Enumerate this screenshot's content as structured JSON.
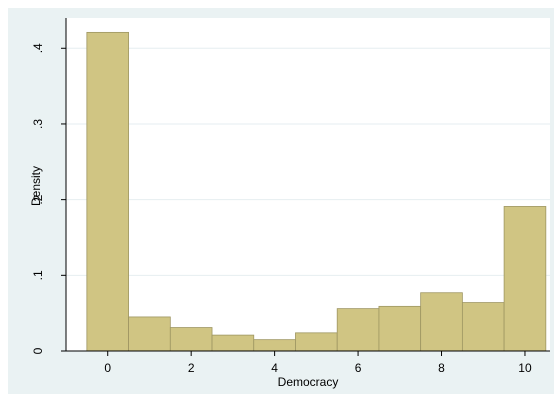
{
  "colors": {
    "outer_background": "#ffffff",
    "graph_region": "#eaf2f3",
    "plot_region": "#ffffff",
    "bar_fill": "#d0c583",
    "bar_stroke": "#9e9662",
    "gridline": "#e6eef0",
    "axis": "#000000"
  },
  "chart_data": {
    "type": "bar",
    "title": "",
    "xlabel": "Democracy",
    "ylabel": "Density",
    "x_ticks": [
      "0",
      "2",
      "4",
      "6",
      "8",
      "10"
    ],
    "y_ticks": [
      "0",
      ".1",
      ".2",
      ".3",
      ".4"
    ],
    "categories": [
      "0",
      "1",
      "2",
      "3",
      "4",
      "5",
      "6",
      "7",
      "8",
      "9",
      "10"
    ],
    "values": [
      0.421,
      0.045,
      0.031,
      0.021,
      0.015,
      0.024,
      0.056,
      0.059,
      0.077,
      0.064,
      0.191
    ],
    "bin_width": 1,
    "xlim": [
      -1,
      10.6
    ],
    "ylim": [
      0,
      0.44
    ],
    "grid": true,
    "legend": "none"
  }
}
